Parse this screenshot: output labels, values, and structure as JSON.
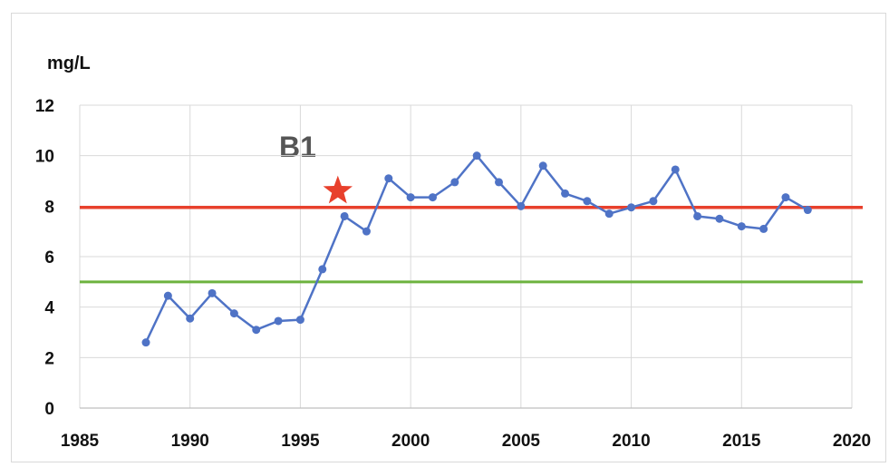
{
  "chart_data": {
    "type": "line",
    "title": "",
    "ylabel": "mg/L",
    "xlabel": "",
    "xlim": [
      1985,
      2020
    ],
    "ylim": [
      0,
      12
    ],
    "xticks": [
      1985,
      1990,
      1995,
      2000,
      2005,
      2010,
      2015,
      2020
    ],
    "yticks": [
      0,
      2,
      4,
      6,
      8,
      10,
      12
    ],
    "grid": true,
    "annotation": {
      "text": "B1",
      "marker": "star",
      "marker_x": 1996.7,
      "marker_y": 8.6
    },
    "reference_lines": [
      {
        "y": 7.95,
        "color": "#e8402c"
      },
      {
        "y": 5.0,
        "color": "#6db33f"
      }
    ],
    "series": [
      {
        "color": "#4f73c6",
        "x": [
          1988,
          1989,
          1990,
          1991,
          1992,
          1993,
          1994,
          1995,
          1996,
          1997,
          1998,
          1999,
          2000,
          2001,
          2002,
          2003,
          2004,
          2005,
          2006,
          2007,
          2008,
          2009,
          2010,
          2011,
          2012,
          2013,
          2014,
          2015,
          2016,
          2017,
          2018
        ],
        "y": [
          2.6,
          4.45,
          3.55,
          4.55,
          3.75,
          3.1,
          3.45,
          3.5,
          5.5,
          7.6,
          7.0,
          9.1,
          8.35,
          8.35,
          8.95,
          10.0,
          8.95,
          8.0,
          9.6,
          8.5,
          8.2,
          7.7,
          7.95,
          8.2,
          9.45,
          7.6,
          7.5,
          7.2,
          7.1,
          8.35,
          7.85
        ]
      }
    ]
  }
}
